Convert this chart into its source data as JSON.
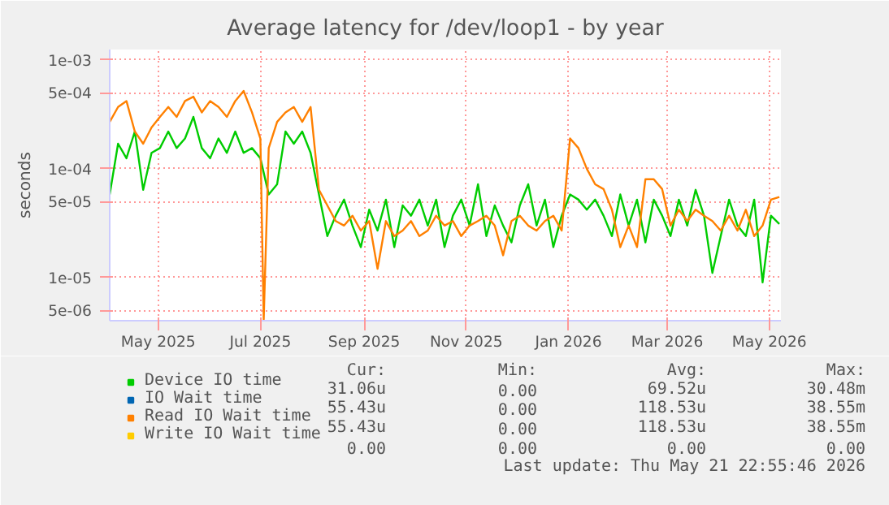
{
  "chart_data": {
    "type": "line",
    "title": "Average latency for /dev/loop1 - by year",
    "ylabel": "seconds",
    "x": [
      "2025-04-16",
      "2025-04-21",
      "2025-04-26",
      "2025-05-01",
      "2025-05-06",
      "2025-05-11",
      "2025-05-16",
      "2025-05-21",
      "2025-05-26",
      "2025-05-31",
      "2025-06-05",
      "2025-06-10",
      "2025-06-15",
      "2025-06-20",
      "2025-06-25",
      "2025-06-30",
      "2025-07-05",
      "2025-07-10",
      "2025-07-15",
      "2025-07-20",
      "2025-07-25",
      "2025-07-30",
      "2025-08-04",
      "2025-08-09",
      "2025-08-14",
      "2025-08-19",
      "2025-08-24",
      "2025-08-29",
      "2025-09-03",
      "2025-09-08",
      "2025-09-13",
      "2025-09-18",
      "2025-09-23",
      "2025-09-28",
      "2025-10-03",
      "2025-10-08",
      "2025-10-13",
      "2025-10-18",
      "2025-10-23",
      "2025-10-28",
      "2025-11-02",
      "2025-11-07",
      "2025-11-12",
      "2025-11-17",
      "2025-11-22",
      "2025-11-27",
      "2025-12-02",
      "2025-12-07",
      "2025-12-12",
      "2025-12-17",
      "2025-12-22",
      "2025-12-27",
      "2026-01-01",
      "2026-01-06",
      "2026-01-11",
      "2026-01-16",
      "2026-01-21",
      "2026-01-26",
      "2026-01-31",
      "2026-02-05",
      "2026-02-10",
      "2026-02-15",
      "2026-02-20",
      "2026-02-25",
      "2026-03-02",
      "2026-03-07",
      "2026-03-12",
      "2026-03-17",
      "2026-03-22",
      "2026-03-27",
      "2026-04-01",
      "2026-04-06",
      "2026-04-11",
      "2026-04-16",
      "2026-04-21",
      "2026-04-26",
      "2026-05-01",
      "2026-05-06",
      "2026-05-11",
      "2026-05-16",
      "2026-05-21"
    ],
    "xlim": [
      "2025-04-16",
      "2026-05-21T22:55"
    ],
    "xticks": [
      {
        "value": "2025-05-15",
        "label": "May 2025"
      },
      {
        "value": "2025-07-15",
        "label": "Jul 2025"
      },
      {
        "value": "2025-09-15",
        "label": "Sep 2025"
      },
      {
        "value": "2025-11-15",
        "label": "Nov 2025"
      },
      {
        "value": "2026-01-15",
        "label": "Jan 2026"
      },
      {
        "value": "2026-03-15",
        "label": "Mar 2026"
      },
      {
        "value": "2026-05-15",
        "label": "May 2026"
      }
    ],
    "ylim": [
      4e-06,
      0.00125
    ],
    "yticks": [
      {
        "value": 5e-06,
        "label": "5e-06"
      },
      {
        "value": 1e-05,
        "label": "1e-05"
      },
      {
        "value": 5e-05,
        "label": "5e-05"
      },
      {
        "value": 0.0001,
        "label": "1e-04"
      },
      {
        "value": 0.0005,
        "label": "5e-04"
      },
      {
        "value": 0.001,
        "label": "1e-03"
      }
    ],
    "log": "y",
    "grid": true,
    "legend": "bottom",
    "marker": "none",
    "line_style": "solid",
    "series": [
      {
        "name": "Device IO time",
        "color": "#00cc00",
        "values": [
          5.8e-05,
          0.00017,
          0.000125,
          0.00022,
          6.4e-05,
          0.00014,
          0.000155,
          0.00022,
          0.000155,
          0.00019,
          0.0003,
          0.000155,
          0.000125,
          0.00019,
          0.00014,
          0.00022,
          0.00014,
          0.000155,
          0.000125,
          5.8e-05,
          7.2e-05,
          0.00022,
          0.00017,
          0.00022,
          0.00014,
          5.8e-05,
          2.4e-05,
          3.7e-05,
          5.2e-05,
          3e-05,
          1.9e-05,
          4.2e-05,
          2.7e-05,
          5.2e-05,
          1.9e-05,
          4.6e-05,
          3.7e-05,
          5.2e-05,
          3e-05,
          5.2e-05,
          1.9e-05,
          3.7e-05,
          5.2e-05,
          3e-05,
          7.2e-05,
          2.4e-05,
          4.6e-05,
          3e-05,
          2.1e-05,
          4.6e-05,
          7.2e-05,
          3e-05,
          5.2e-05,
          1.9e-05,
          3.7e-05,
          5.8e-05,
          5.2e-05,
          4.2e-05,
          5.2e-05,
          3.7e-05,
          2.4e-05,
          5.8e-05,
          3e-05,
          5.2e-05,
          2.1e-05,
          5.2e-05,
          3.7e-05,
          2.4e-05,
          5.2e-05,
          3e-05,
          6.4e-05,
          3.7e-05,
          1.1e-05,
          2.4e-05,
          5.2e-05,
          3e-05,
          2.4e-05,
          5.2e-05,
          9e-06,
          3.7e-05,
          3.1e-05
        ]
      },
      {
        "name": "IO Wait time",
        "color": "#0066b3",
        "values": [
          null,
          null,
          null,
          null,
          null,
          null,
          null,
          null,
          null,
          null,
          null,
          null,
          null,
          null,
          null,
          null,
          null,
          null,
          null,
          null,
          null,
          null,
          null,
          null,
          null,
          null,
          null,
          null,
          null,
          null,
          null,
          null,
          null,
          null,
          null,
          null,
          null,
          null,
          null,
          null,
          null,
          null,
          null,
          null,
          null,
          null,
          null,
          null,
          null,
          null,
          null,
          null,
          null,
          null,
          null,
          null,
          null,
          null,
          null,
          null,
          null,
          null,
          null,
          null,
          null,
          null,
          null,
          null,
          null,
          null,
          null,
          null,
          null,
          null,
          null,
          null,
          null,
          null,
          null,
          null,
          null
        ]
      },
      {
        "name": "Read IO Wait time",
        "color": "#ff8000",
        "x": [
          "2025-04-16",
          "2025-04-21",
          "2025-04-26",
          "2025-05-01",
          "2025-05-06",
          "2025-05-11",
          "2025-05-16",
          "2025-05-21",
          "2025-05-26",
          "2025-05-31",
          "2025-06-05",
          "2025-06-10",
          "2025-06-15",
          "2025-06-20",
          "2025-06-25",
          "2025-06-30",
          "2025-07-05",
          "2025-07-10",
          "2025-07-15",
          "2025-07-17",
          "2025-07-20",
          "2025-07-25",
          "2025-07-30",
          "2025-08-04",
          "2025-08-09",
          "2025-08-14",
          "2025-08-19",
          "2025-08-24",
          "2025-08-29",
          "2025-09-03",
          "2025-09-08",
          "2025-09-13",
          "2025-09-18",
          "2025-09-23",
          "2025-09-28",
          "2025-10-03",
          "2025-10-08",
          "2025-10-13",
          "2025-10-18",
          "2025-10-23",
          "2025-10-28",
          "2025-11-02",
          "2025-11-07",
          "2025-11-12",
          "2025-11-17",
          "2025-11-22",
          "2025-11-27",
          "2025-12-02",
          "2025-12-07",
          "2025-12-12",
          "2025-12-17",
          "2025-12-22",
          "2025-12-27",
          "2026-01-01",
          "2026-01-06",
          "2026-01-11",
          "2026-01-16",
          "2026-01-21",
          "2026-01-26",
          "2026-01-31",
          "2026-02-05",
          "2026-02-10",
          "2026-02-15",
          "2026-02-20",
          "2026-02-25",
          "2026-03-02",
          "2026-03-07",
          "2026-03-12",
          "2026-03-17",
          "2026-03-22",
          "2026-03-27",
          "2026-04-01",
          "2026-04-06",
          "2026-04-11",
          "2026-04-16",
          "2026-04-21",
          "2026-04-26",
          "2026-05-01",
          "2026-05-06",
          "2026-05-11",
          "2026-05-16",
          "2026-05-21"
        ],
        "values": [
          0.00027,
          0.00037,
          0.00042,
          0.00022,
          0.00017,
          0.00024,
          0.0003,
          0.00037,
          0.0003,
          0.00042,
          0.00046,
          0.00033,
          0.00042,
          0.00037,
          0.0003,
          0.00042,
          0.00052,
          0.00033,
          0.00019,
          4.1e-06,
          0.000155,
          0.00027,
          0.00033,
          0.00037,
          0.00027,
          0.00037,
          6.4e-05,
          4.6e-05,
          3.3e-05,
          3e-05,
          3.7e-05,
          2.7e-05,
          3.3e-05,
          1.2e-05,
          3.3e-05,
          2.4e-05,
          2.7e-05,
          3.3e-05,
          2.4e-05,
          2.7e-05,
          3.7e-05,
          3e-05,
          3.3e-05,
          2.4e-05,
          3e-05,
          3.3e-05,
          3.7e-05,
          3e-05,
          1.6e-05,
          3.3e-05,
          3.7e-05,
          3e-05,
          2.7e-05,
          3.3e-05,
          3.7e-05,
          2.7e-05,
          0.00019,
          0.000155,
          0.0001,
          7.2e-05,
          6.5e-05,
          4.2e-05,
          1.9e-05,
          3e-05,
          1.9e-05,
          8e-05,
          8e-05,
          6.5e-05,
          3e-05,
          4.2e-05,
          3.3e-05,
          4.2e-05,
          3.7e-05,
          3.3e-05,
          2.7e-05,
          3.7e-05,
          2.7e-05,
          4.2e-05,
          2.4e-05,
          3e-05,
          5.2e-05,
          5.5e-05
        ]
      },
      {
        "name": "Write IO Wait time",
        "color": "#ffcc00",
        "values": [
          null,
          null,
          null,
          null,
          null,
          null,
          null,
          null,
          null,
          null,
          null,
          null,
          null,
          null,
          null,
          null,
          null,
          null,
          null,
          null,
          null,
          null,
          null,
          null,
          null,
          null,
          null,
          null,
          null,
          null,
          null,
          null,
          null,
          null,
          null,
          null,
          null,
          null,
          null,
          null,
          null,
          null,
          null,
          null,
          null,
          null,
          null,
          null,
          null,
          null,
          null,
          null,
          null,
          null,
          null,
          null,
          null,
          null,
          null,
          null,
          null,
          null,
          null,
          null,
          null,
          null,
          null,
          null,
          null,
          null,
          null,
          null,
          null,
          null,
          null,
          null,
          null,
          null,
          null,
          null,
          null
        ]
      }
    ],
    "annotations": [
      "Cur:",
      "Min:",
      "Avg:",
      "Max:",
      "31.06u",
      "0.00",
      "69.52u",
      "30.48m",
      "55.43u",
      "0.00",
      "118.53u",
      "38.55m",
      "55.43u",
      "0.00",
      "118.53u",
      "38.55m",
      "0.00",
      "0.00",
      "0.00",
      "0.00",
      "Last update: Thu May 21 22:55:46 2026"
    ]
  }
}
